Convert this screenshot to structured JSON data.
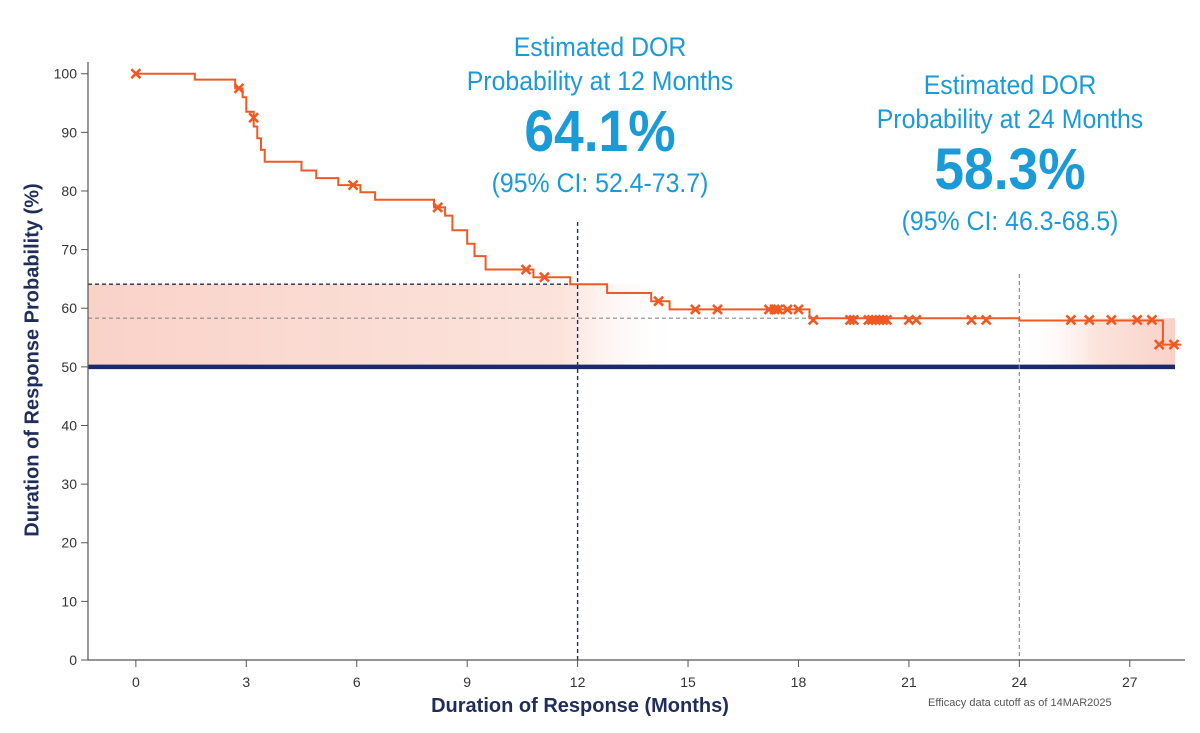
{
  "chart_data": {
    "type": "line",
    "title": "",
    "xlabel": "Duration of Response (Months)",
    "ylabel": "Duration of Response Probability (%)",
    "xlim": [
      -1.3,
      28.5
    ],
    "ylim": [
      0,
      102
    ],
    "x_ticks": [
      0,
      3,
      6,
      9,
      12,
      15,
      18,
      21,
      24,
      27
    ],
    "y_ticks": [
      0,
      10,
      20,
      30,
      40,
      50,
      60,
      70,
      80,
      90,
      100
    ],
    "grid": false,
    "series": [
      {
        "color": "#ee5a24",
        "step": [
          [
            0,
            100
          ],
          [
            1.6,
            100
          ],
          [
            1.6,
            99
          ],
          [
            2.7,
            99
          ],
          [
            2.7,
            97.5
          ],
          [
            2.9,
            97.5
          ],
          [
            2.9,
            96
          ],
          [
            3.0,
            96
          ],
          [
            3.0,
            93.5
          ],
          [
            3.2,
            93.5
          ],
          [
            3.2,
            91
          ],
          [
            3.3,
            91
          ],
          [
            3.3,
            89
          ],
          [
            3.4,
            89
          ],
          [
            3.4,
            87
          ],
          [
            3.5,
            87
          ],
          [
            3.5,
            85
          ],
          [
            4.5,
            85
          ],
          [
            4.5,
            83.5
          ],
          [
            4.9,
            83.5
          ],
          [
            4.9,
            82.2
          ],
          [
            5.5,
            82.2
          ],
          [
            5.5,
            81
          ],
          [
            6.1,
            81
          ],
          [
            6.1,
            79.8
          ],
          [
            6.5,
            79.8
          ],
          [
            6.5,
            78.5
          ],
          [
            8.1,
            78.5
          ],
          [
            8.1,
            77.2
          ],
          [
            8.4,
            77.2
          ],
          [
            8.4,
            75.8
          ],
          [
            8.6,
            75.8
          ],
          [
            8.6,
            73.3
          ],
          [
            9.0,
            73.3
          ],
          [
            9.0,
            71.0
          ],
          [
            9.2,
            71.0
          ],
          [
            9.2,
            68.9
          ],
          [
            9.5,
            68.9
          ],
          [
            9.5,
            66.6
          ],
          [
            10.8,
            66.6
          ],
          [
            10.8,
            65.3
          ],
          [
            11.8,
            65.3
          ],
          [
            11.8,
            64.1
          ],
          [
            12.8,
            64.1
          ],
          [
            12.8,
            62.6
          ],
          [
            14.0,
            62.6
          ],
          [
            14.0,
            61.2
          ],
          [
            14.5,
            61.2
          ],
          [
            14.5,
            59.8
          ],
          [
            18.3,
            59.8
          ],
          [
            18.3,
            58.3
          ],
          [
            24.0,
            58.3
          ],
          [
            24.0,
            57.9
          ],
          [
            27.9,
            57.9
          ],
          [
            27.9,
            53.8
          ],
          [
            28.4,
            53.8
          ]
        ],
        "censored_x": [
          0,
          2.8,
          3.2,
          5.9,
          8.2,
          10.6,
          11.1,
          14.2,
          15.2,
          15.8,
          17.2,
          17.35,
          17.45,
          17.7,
          18.0,
          18.4,
          19.4,
          19.5,
          19.9,
          20.0,
          20.1,
          20.2,
          20.3,
          20.4,
          21.0,
          21.2,
          22.7,
          23.1,
          25.4,
          25.9,
          26.5,
          27.2,
          27.6,
          27.8,
          28.2
        ],
        "censored_y": [
          100,
          97.5,
          92.5,
          81,
          77.2,
          66.6,
          65.3,
          61.2,
          59.8,
          59.8,
          59.8,
          59.8,
          59.8,
          59.8,
          59.8,
          58.0,
          58.0,
          58.0,
          58.0,
          58.0,
          58.0,
          58.0,
          58.0,
          58.0,
          58.0,
          58.0,
          58.0,
          58.0,
          58.0,
          58.0,
          58.0,
          58.0,
          58.0,
          53.8,
          53.8
        ]
      }
    ],
    "reference_lines": {
      "median_line_y": 50,
      "estimate_12": {
        "x": 12,
        "y": 64.1
      },
      "estimate_24": {
        "x": 24,
        "y": 58.3
      }
    },
    "colors": {
      "curve": "#ee5a24",
      "annotation": "#1a9ad6",
      "axis_text": "#1f2d5c",
      "median_line": "#1c2a6b",
      "band": "#f9d2c8"
    }
  },
  "annotations": {
    "month12": {
      "line1": "Estimated DOR",
      "line2": "Probability at 12 Months",
      "value": "64.1%",
      "ci": "(95% CI: 52.4-73.7)"
    },
    "month24": {
      "line1": "Estimated DOR",
      "line2": "Probability at 24 Months",
      "value": "58.3%",
      "ci": "(95% CI: 46.3-68.5)"
    }
  },
  "footnote": "Efficacy data cutoff as of 14MAR2025"
}
